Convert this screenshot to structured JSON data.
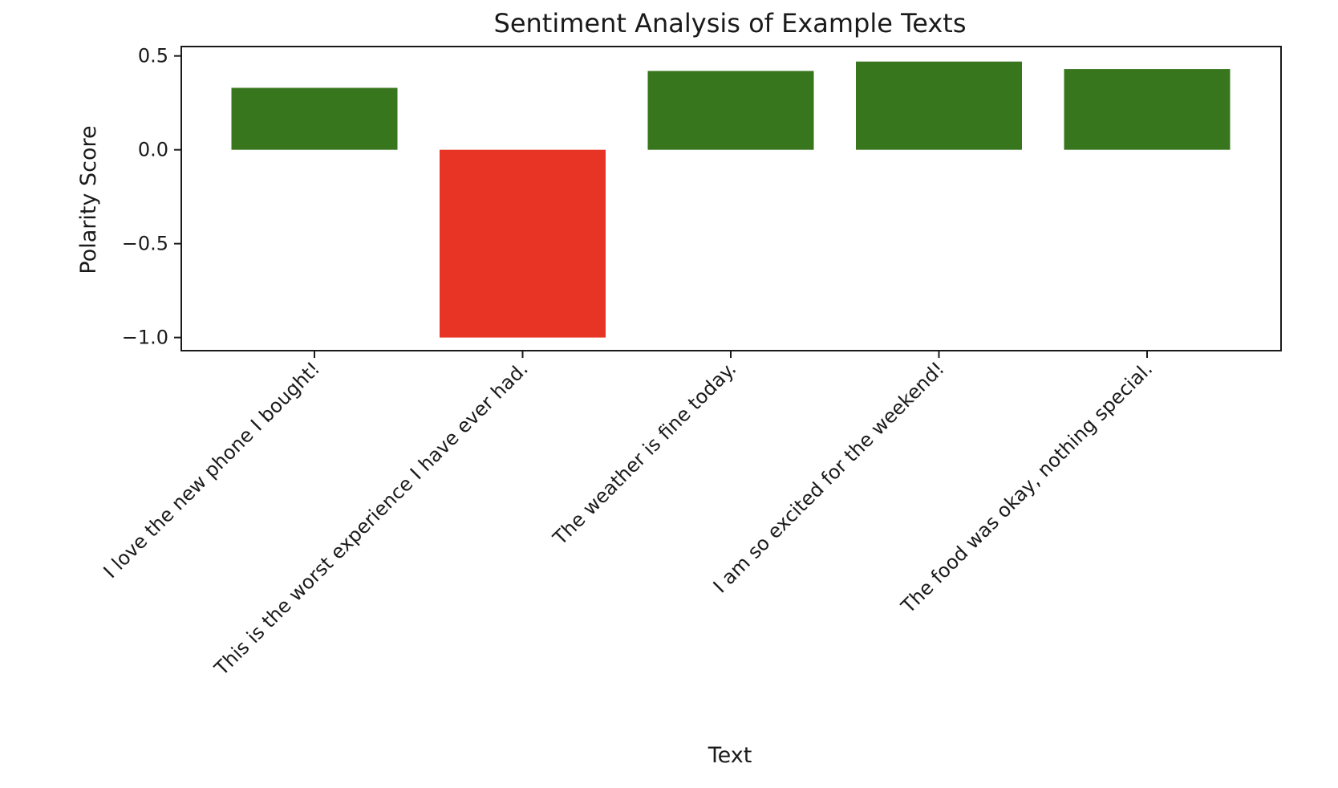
{
  "chart_data": {
    "type": "bar",
    "title": "Sentiment Analysis of Example Texts",
    "xlabel": "Text",
    "ylabel": "Polarity Score",
    "categories": [
      "I love the new phone I bought!",
      "This is the worst experience I have ever had.",
      "The weather is fine today.",
      "I am so excited for the weekend!",
      "The food was okay, nothing special."
    ],
    "values": [
      0.33,
      -1.0,
      0.42,
      0.47,
      0.43
    ],
    "ylim": [
      -1.07,
      0.55
    ],
    "yticks": [
      0.5,
      0.0,
      -0.5,
      -1.0
    ],
    "ytick_labels": [
      "0.5",
      "0.0",
      "−0.5",
      "−1.0"
    ],
    "colors": {
      "positive": "#38761d",
      "negative": "#e83424"
    },
    "grid": false,
    "legend": "none"
  }
}
